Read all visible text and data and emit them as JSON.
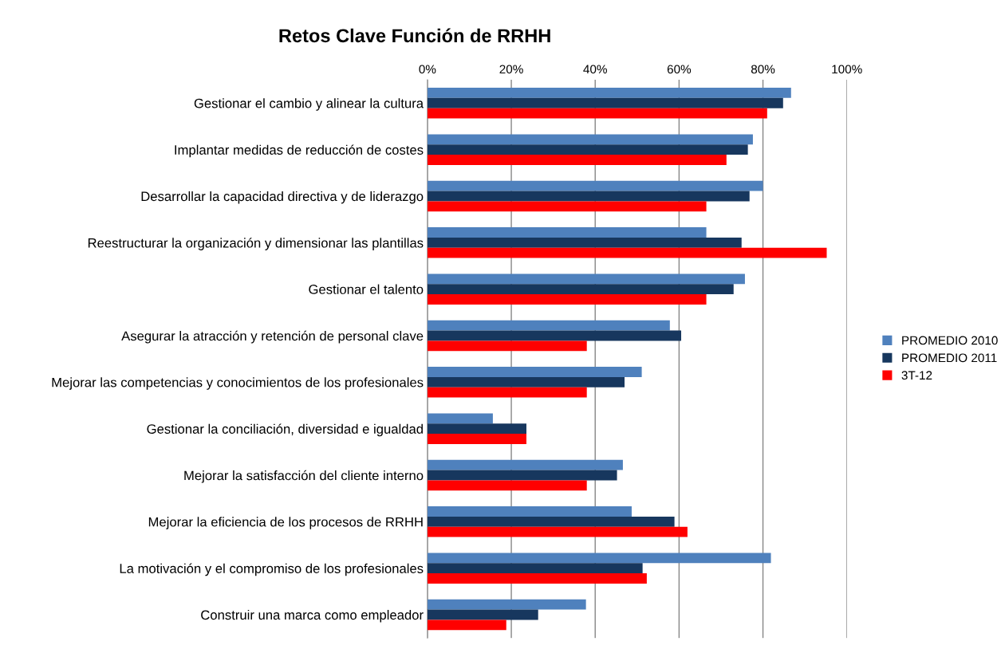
{
  "chart_data": {
    "type": "bar",
    "orientation": "horizontal",
    "title": "Retos Clave Función de RRHH",
    "categories": [
      "Gestionar el cambio y alinear la cultura",
      "Implantar medidas de reducción de costes",
      "Desarrollar la capacidad directiva y de liderazgo",
      "Reestructurar la organización y dimensionar las plantillas",
      "Gestionar el talento",
      "Asegurar la atracción y retención de personal clave",
      "Mejorar las competencias y conocimientos de los profesionales",
      "Gestionar la conciliación, diversidad e igualdad",
      "Mejorar la satisfacción del cliente interno",
      "Mejorar la eficiencia de los procesos de RRHH",
      "La motivación y el compromiso de los profesionales",
      "Construir una marca como empleador"
    ],
    "series": [
      {
        "name": "PROMEDIO 2010",
        "color": "#4f81bd",
        "values": [
          86.7,
          77.6,
          80.0,
          66.5,
          75.7,
          57.8,
          51.1,
          15.6,
          46.6,
          48.7,
          81.9,
          37.8
        ]
      },
      {
        "name": "PROMEDIO 2011",
        "color": "#17375e",
        "values": [
          84.8,
          76.4,
          76.8,
          74.9,
          73.0,
          60.5,
          47.0,
          23.6,
          45.2,
          58.9,
          51.3,
          26.4
        ]
      },
      {
        "name": "3T-12",
        "color": "#ff0000",
        "values": [
          81.0,
          71.3,
          66.5,
          95.2,
          66.5,
          38.0,
          38.0,
          23.6,
          38.0,
          62.0,
          52.3,
          18.8
        ]
      }
    ],
    "xlim": [
      0,
      100
    ],
    "xticks": [
      {
        "value": 0,
        "label": "0%"
      },
      {
        "value": 20,
        "label": "20%"
      },
      {
        "value": 40,
        "label": "40%"
      },
      {
        "value": 60,
        "label": "60%"
      },
      {
        "value": 80,
        "label": "80%"
      },
      {
        "value": 100,
        "label": "100%"
      }
    ],
    "grid": "x",
    "legend": "right"
  }
}
